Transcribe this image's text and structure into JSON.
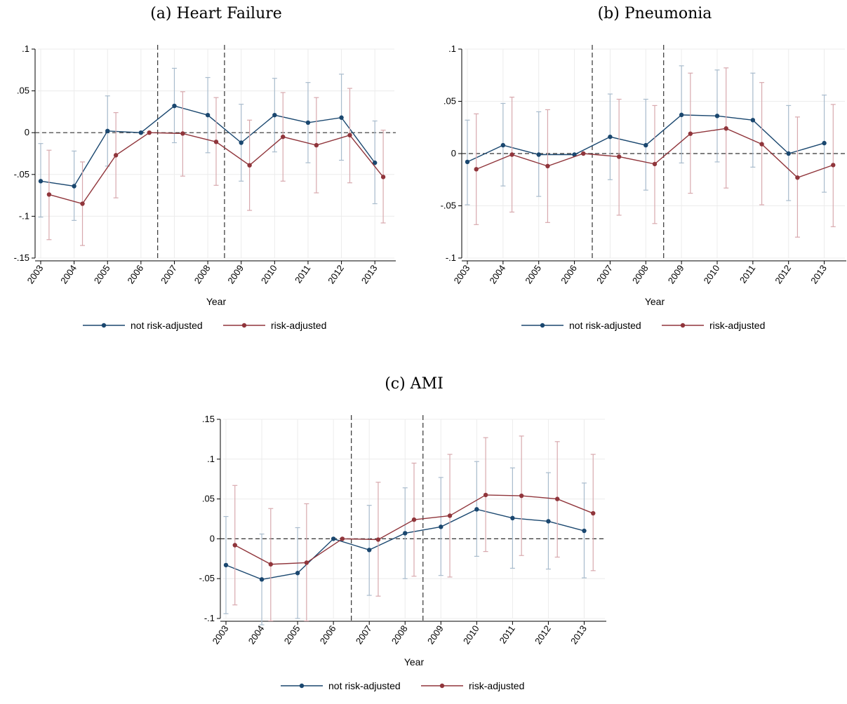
{
  "chart_data": [
    {
      "type": "line",
      "title": "(a) Heart Failure",
      "xlabel": "Year",
      "ylabel": "",
      "x": [
        "2003",
        "2004",
        "2005",
        "2006",
        "2007",
        "2008",
        "2009",
        "2010",
        "2011",
        "2012",
        "2013"
      ],
      "ylim": [
        -0.15,
        0.1
      ],
      "yticks": [
        -0.15,
        -0.1,
        -0.05,
        0,
        0.05,
        0.1
      ],
      "ytick_labels": [
        "-.15",
        "-.1",
        "-.05",
        "0",
        ".05",
        ".1"
      ],
      "vlines_after_years": [
        "2006",
        "2008"
      ],
      "hline": 0,
      "grid": true,
      "legend_position": "bottom",
      "series": [
        {
          "name": "not risk-adjusted",
          "color": "#1a476f",
          "values": [
            -0.058,
            -0.064,
            0.002,
            0.0,
            0.032,
            0.021,
            -0.012,
            0.021,
            0.012,
            0.018,
            -0.036
          ],
          "ci_low": [
            -0.101,
            -0.105,
            -0.04,
            0.0,
            -0.012,
            -0.024,
            -0.058,
            -0.023,
            -0.036,
            -0.033,
            -0.085
          ],
          "ci_high": [
            -0.013,
            -0.022,
            0.044,
            0.0,
            0.077,
            0.066,
            0.034,
            0.065,
            0.06,
            0.07,
            0.014
          ]
        },
        {
          "name": "risk-adjusted",
          "color": "#90353b",
          "values": [
            -0.074,
            -0.085,
            -0.027,
            0.0,
            -0.001,
            -0.011,
            -0.039,
            -0.005,
            -0.015,
            -0.003,
            -0.053
          ],
          "ci_low": [
            -0.128,
            -0.135,
            -0.078,
            0.0,
            -0.052,
            -0.063,
            -0.093,
            -0.058,
            -0.072,
            -0.06,
            -0.108
          ],
          "ci_high": [
            -0.021,
            -0.035,
            0.024,
            0.0,
            0.049,
            0.042,
            0.015,
            0.048,
            0.042,
            0.053,
            0.003
          ]
        }
      ]
    },
    {
      "type": "line",
      "title": "(b) Pneumonia",
      "xlabel": "Year",
      "ylabel": "",
      "x": [
        "2003",
        "2004",
        "2005",
        "2006",
        "2007",
        "2008",
        "2009",
        "2010",
        "2011",
        "2012",
        "2013"
      ],
      "ylim": [
        -0.1,
        0.1
      ],
      "yticks": [
        -0.1,
        -0.05,
        0,
        0.05,
        0.1
      ],
      "ytick_labels": [
        "-.1",
        "-.05",
        "0",
        ".05",
        ".1"
      ],
      "vlines_after_years": [
        "2006",
        "2008"
      ],
      "hline": 0,
      "grid": true,
      "legend_position": "bottom",
      "series": [
        {
          "name": "not risk-adjusted",
          "color": "#1a476f",
          "values": [
            -0.008,
            0.008,
            -0.001,
            -0.001,
            0.016,
            0.008,
            0.037,
            0.036,
            0.032,
            0.0,
            0.01
          ],
          "ci_low": [
            -0.049,
            -0.031,
            -0.041,
            -0.001,
            -0.025,
            -0.035,
            -0.009,
            -0.008,
            -0.013,
            -0.045,
            -0.037
          ],
          "ci_high": [
            0.032,
            0.048,
            0.04,
            -0.001,
            0.057,
            0.052,
            0.084,
            0.08,
            0.077,
            0.046,
            0.056
          ]
        },
        {
          "name": "risk-adjusted",
          "color": "#90353b",
          "values": [
            -0.015,
            -0.001,
            -0.012,
            0.0,
            -0.003,
            -0.01,
            0.019,
            0.024,
            0.009,
            -0.023,
            -0.011
          ],
          "ci_low": [
            -0.068,
            -0.056,
            -0.066,
            0.0,
            -0.059,
            -0.067,
            -0.038,
            -0.033,
            -0.049,
            -0.08,
            -0.07
          ],
          "ci_high": [
            0.038,
            0.054,
            0.042,
            0.0,
            0.052,
            0.046,
            0.077,
            0.082,
            0.068,
            0.035,
            0.047
          ]
        }
      ]
    },
    {
      "type": "line",
      "title": "(c) AMI",
      "xlabel": "Year",
      "ylabel": "",
      "x": [
        "2003",
        "2004",
        "2005",
        "2006",
        "2007",
        "2008",
        "2009",
        "2010",
        "2011",
        "2012",
        "2013"
      ],
      "ylim": [
        -0.1,
        0.15
      ],
      "yticks": [
        -0.1,
        -0.05,
        0,
        0.05,
        0.1,
        0.15
      ],
      "ytick_labels": [
        "-.1",
        "-.05",
        "0",
        ".05",
        ".1",
        ".15"
      ],
      "vlines_after_years": [
        "2006",
        "2008"
      ],
      "hline": 0,
      "grid": true,
      "legend_position": "bottom",
      "series": [
        {
          "name": "not risk-adjusted",
          "color": "#1a476f",
          "values": [
            -0.033,
            -0.051,
            -0.043,
            0.0,
            -0.014,
            0.007,
            0.015,
            0.037,
            0.026,
            0.022,
            0.01
          ],
          "ci_low": [
            -0.094,
            -0.108,
            -0.1,
            0.0,
            -0.071,
            -0.05,
            -0.046,
            -0.022,
            -0.037,
            -0.038,
            -0.049
          ],
          "ci_high": [
            0.028,
            0.006,
            0.014,
            0.0,
            0.042,
            0.064,
            0.077,
            0.097,
            0.089,
            0.083,
            0.07
          ]
        },
        {
          "name": "risk-adjusted",
          "color": "#90353b",
          "values": [
            -0.008,
            -0.032,
            -0.03,
            0.0,
            -0.001,
            0.024,
            0.029,
            0.055,
            0.054,
            0.05,
            0.032
          ],
          "ci_low": [
            -0.083,
            -0.103,
            -0.103,
            0.0,
            -0.072,
            -0.047,
            -0.048,
            -0.016,
            -0.021,
            -0.023,
            -0.04
          ],
          "ci_high": [
            0.067,
            0.038,
            0.044,
            0.0,
            0.071,
            0.095,
            0.106,
            0.127,
            0.129,
            0.122,
            0.106
          ]
        }
      ]
    }
  ]
}
